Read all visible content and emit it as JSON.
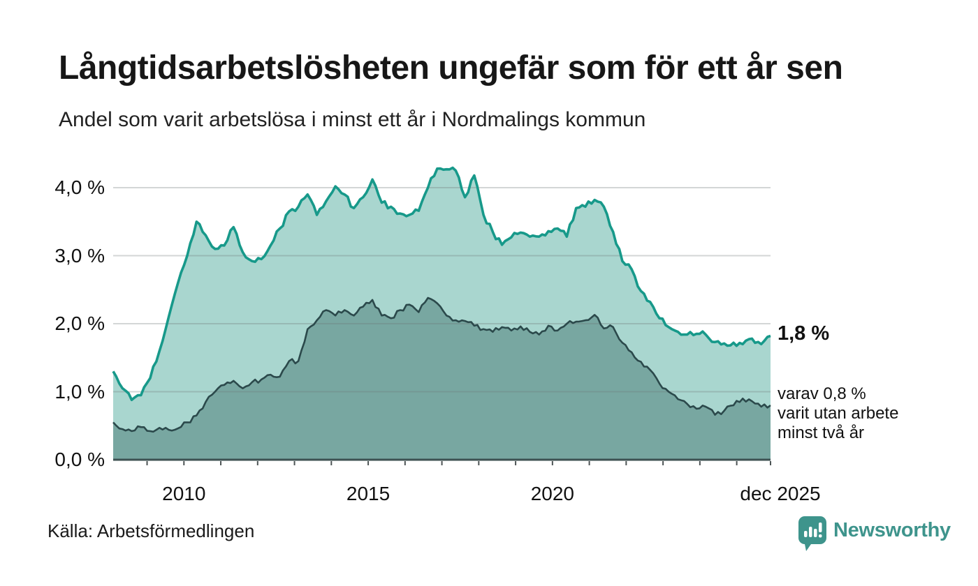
{
  "header": {
    "title": "Långtidsarbetslösheten ungefär som för ett år sen",
    "subtitle": "Andel som varit arbetslösa i minst ett år i Nordmalings kommun"
  },
  "chart_data": {
    "type": "area",
    "title": "Långtidsarbetslösheten ungefär som för ett år sen",
    "subtitle": "Andel som varit arbetslösa i minst ett år i Nordmalings kommun",
    "grid": true,
    "legend_position": "end-of-line annotations",
    "x_axis": {
      "range": [
        2008.08,
        2025.917
      ],
      "tick_positions": [
        2010,
        2015,
        2020,
        2025.917
      ],
      "tick_labels": [
        "2010",
        "2015",
        "2020",
        "dec 2025"
      ],
      "minor_year_ticks": true
    },
    "y_axis": {
      "range": [
        0,
        4.4
      ],
      "tick_values": [
        4,
        3,
        2,
        1,
        0
      ],
      "tick_labels": [
        "4,0 %",
        "3,0 %",
        "2,0 %",
        "1,0 %",
        "0,0 %"
      ],
      "unit": "%"
    },
    "series": [
      {
        "name": "Andel arbetslösa minst ett år (totalt)",
        "color": "#17998a",
        "fill": "#a9d6cf",
        "end_value": 1.8,
        "end_label": "1,8 %",
        "points_per_year": 4,
        "start_year": 2008,
        "values": [
          1.3,
          1.05,
          0.88,
          0.95,
          1.2,
          1.6,
          2.1,
          2.6,
          3.0,
          3.5,
          3.3,
          3.1,
          3.15,
          3.42,
          3.05,
          2.92,
          2.95,
          3.15,
          3.4,
          3.65,
          3.72,
          3.9,
          3.6,
          3.8,
          4.02,
          3.9,
          3.7,
          3.86,
          4.12,
          3.78,
          3.72,
          3.62,
          3.6,
          3.66,
          4.0,
          4.28,
          4.27,
          4.25,
          3.86,
          4.18,
          3.6,
          3.35,
          3.16,
          3.27,
          3.34,
          3.28,
          3.28,
          3.36,
          3.4,
          3.28,
          3.7,
          3.72,
          3.82,
          3.72,
          3.35,
          2.92,
          2.8,
          2.48,
          2.32,
          2.08,
          1.95,
          1.88,
          1.84,
          1.85,
          1.84,
          1.73,
          1.71,
          1.72,
          1.7,
          1.78,
          1.7,
          1.82
        ]
      },
      {
        "name": "Varav utan arbete minst två år",
        "color": "#2b494b",
        "fill": "#78a7a1",
        "end_value": 0.8,
        "end_label": "varav 0,8 % varit utan arbete minst två år",
        "points_per_year": 4,
        "start_year": 2008,
        "values": [
          0.55,
          0.45,
          0.42,
          0.48,
          0.42,
          0.47,
          0.44,
          0.46,
          0.55,
          0.65,
          0.85,
          1.0,
          1.1,
          1.16,
          1.05,
          1.14,
          1.18,
          1.25,
          1.22,
          1.45,
          1.45,
          1.92,
          2.05,
          2.2,
          2.12,
          2.2,
          2.12,
          2.25,
          2.35,
          2.12,
          2.08,
          2.2,
          2.28,
          2.17,
          2.38,
          2.3,
          2.12,
          2.05,
          2.04,
          1.97,
          1.92,
          1.88,
          1.95,
          1.9,
          1.96,
          1.88,
          1.84,
          1.97,
          1.9,
          2.0,
          2.03,
          2.05,
          2.13,
          1.93,
          1.95,
          1.72,
          1.58,
          1.44,
          1.32,
          1.12,
          1.0,
          0.89,
          0.82,
          0.75,
          0.78,
          0.66,
          0.72,
          0.8,
          0.9,
          0.86,
          0.78,
          0.8
        ]
      }
    ]
  },
  "annotations": {
    "total_label": "1,8 %",
    "note_lines": [
      "varav 0,8 %",
      "varit utan arbete",
      "minst två år"
    ]
  },
  "footer": {
    "source": "Källa: Arbetsförmedlingen",
    "brand": "Newsworthy"
  },
  "colors": {
    "line_total": "#17998a",
    "fill_total": "#a9d6cf",
    "line_two_years": "#2b494b",
    "fill_two_years": "#78a7a1",
    "axis": "#3d5152",
    "gridline": "#dcdede",
    "brand": "#3e948c"
  }
}
